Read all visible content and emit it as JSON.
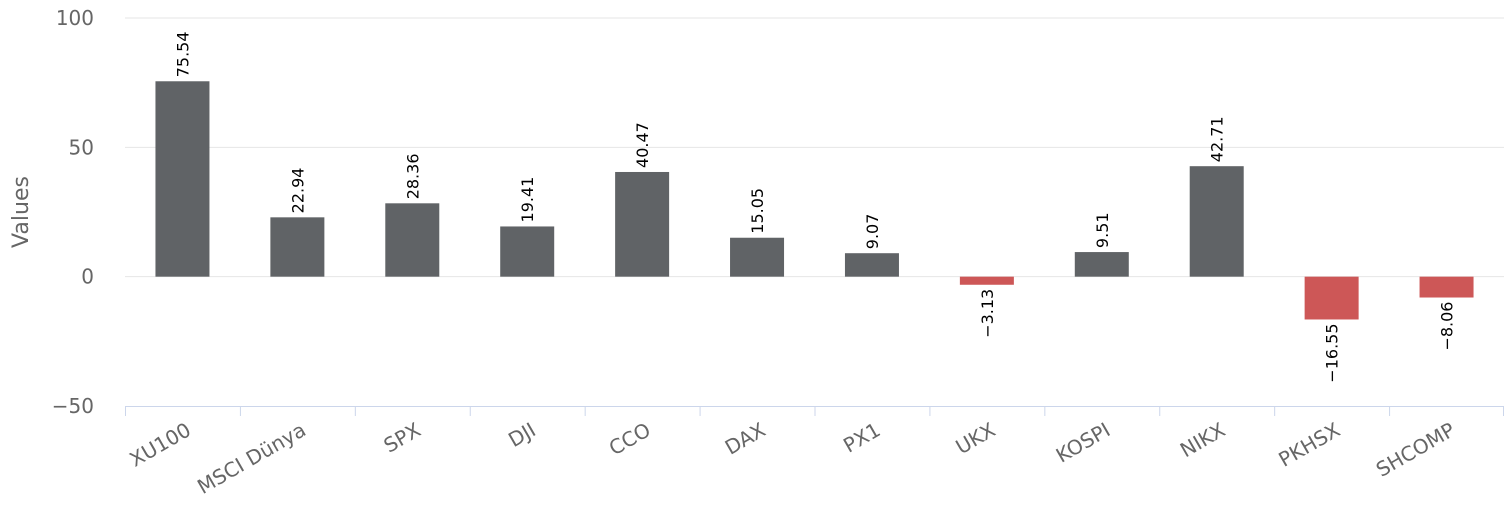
{
  "chart_data": {
    "type": "bar",
    "categories": [
      "XU100",
      "MSCI Dünya",
      "SPX",
      "DJI",
      "CCO",
      "DAX",
      "PX1",
      "UKX",
      "KOSPI",
      "NIKX",
      "PKHSX",
      "SHCOMP"
    ],
    "values": [
      75.54,
      22.94,
      28.36,
      19.41,
      40.47,
      15.05,
      9.07,
      -3.13,
      9.51,
      42.71,
      -16.55,
      -8.06
    ],
    "data_labels": [
      "75.54",
      "22.94",
      "28.36",
      "19.41",
      "40.47",
      "15.05",
      "9.07",
      "−3.13",
      "9.51",
      "42.71",
      "−16.55",
      "−8.06"
    ],
    "title": "",
    "xlabel": "",
    "ylabel": "Values",
    "ylim": [
      -50,
      100
    ],
    "yticks": [
      100,
      50,
      0,
      -50
    ],
    "ytick_labels": [
      "100",
      "50",
      "0",
      "−50"
    ],
    "grid": true,
    "legend": "none",
    "colors": {
      "positive": "#606366",
      "negative": "#cd5757",
      "grid": "#e6e6e6",
      "axis": "#ccd6eb"
    }
  }
}
